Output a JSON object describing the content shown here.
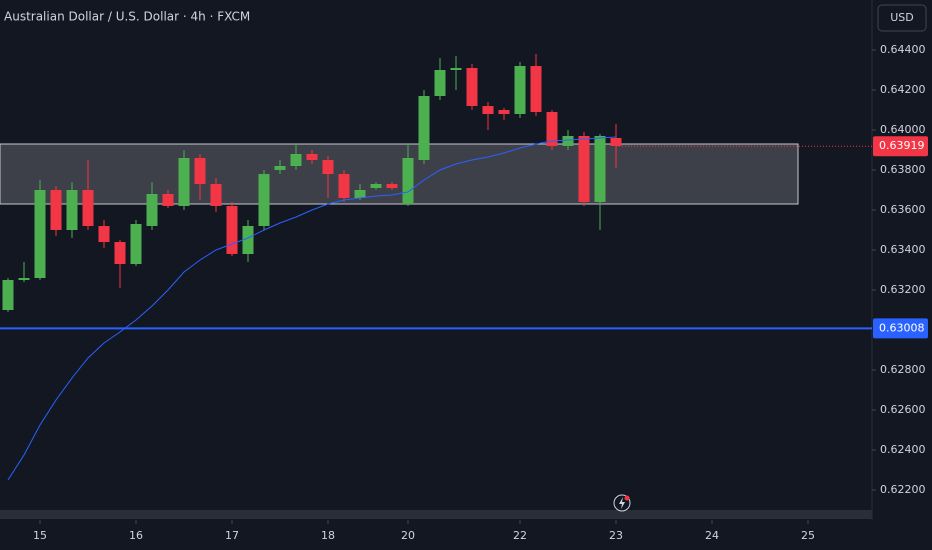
{
  "chart_data": {
    "type": "candlestick",
    "title": "Australian Dollar / U.S. Dollar · 4h · FXCM",
    "currency": "USD",
    "up_color": "#4caf50",
    "down_color": "#f23645",
    "candles": {
      "open": [
        0.631,
        0.6325,
        0.6326,
        0.637,
        0.635,
        0.637,
        0.6352,
        0.6344,
        0.6333,
        0.6352,
        0.6368,
        0.6362,
        0.6386,
        0.6373,
        0.6362,
        0.6338,
        0.6352,
        0.638,
        0.6382,
        0.6388,
        0.6385,
        0.6378,
        0.6366,
        0.6371,
        0.6373,
        0.6363,
        0.6385,
        0.6417,
        0.643,
        0.6431,
        0.6412,
        0.641,
        0.6408,
        0.6432,
        0.6409,
        0.6392,
        0.6397,
        0.6364,
        0.6396
      ],
      "high": [
        0.6326,
        0.6334,
        0.6375,
        0.6372,
        0.6374,
        0.6385,
        0.6355,
        0.6345,
        0.6355,
        0.6374,
        0.637,
        0.639,
        0.6388,
        0.6376,
        0.6364,
        0.6355,
        0.638,
        0.6385,
        0.6393,
        0.639,
        0.6387,
        0.638,
        0.6373,
        0.6374,
        0.6374,
        0.6393,
        0.642,
        0.6436,
        0.6437,
        0.6433,
        0.6414,
        0.6411,
        0.6434,
        0.6438,
        0.641,
        0.64,
        0.6399,
        0.6398,
        0.6403
      ],
      "low": [
        0.6309,
        0.6324,
        0.6325,
        0.6347,
        0.6346,
        0.635,
        0.6341,
        0.6321,
        0.6332,
        0.635,
        0.6361,
        0.636,
        0.6365,
        0.6359,
        0.6337,
        0.6334,
        0.635,
        0.6378,
        0.638,
        0.6383,
        0.6366,
        0.6364,
        0.6365,
        0.637,
        0.637,
        0.6362,
        0.6383,
        0.6415,
        0.642,
        0.641,
        0.64,
        0.6405,
        0.6406,
        0.6407,
        0.639,
        0.639,
        0.6362,
        0.635,
        0.6381
      ],
      "close": [
        0.6325,
        0.6326,
        0.637,
        0.635,
        0.637,
        0.6352,
        0.6344,
        0.6333,
        0.6353,
        0.6368,
        0.6362,
        0.6386,
        0.6373,
        0.6362,
        0.6338,
        0.6352,
        0.6378,
        0.6382,
        0.6388,
        0.6385,
        0.6378,
        0.6366,
        0.637,
        0.6373,
        0.6371,
        0.6386,
        0.6417,
        0.643,
        0.6431,
        0.6412,
        0.6408,
        0.6408,
        0.6432,
        0.6409,
        0.6392,
        0.6397,
        0.6364,
        0.6397,
        0.6392
      ]
    },
    "moving_average": {
      "color": "#2962ff",
      "values": [
        0.6225,
        0.62375,
        0.62525,
        0.6265,
        0.6276,
        0.6286,
        0.62935,
        0.6299,
        0.6305,
        0.6312,
        0.632,
        0.6329,
        0.6335,
        0.634,
        0.6343,
        0.6346,
        0.635,
        0.63535,
        0.63565,
        0.636,
        0.6363,
        0.6365,
        0.6366,
        0.6367,
        0.63675,
        0.6369,
        0.6375,
        0.638,
        0.6383,
        0.6385,
        0.63865,
        0.63885,
        0.6391,
        0.6393,
        0.63945,
        0.6395,
        0.63955,
        0.6396,
        0.63965
      ]
    },
    "zone": {
      "top": 0.6393,
      "bottom": 0.6363
    },
    "horizontal_line": {
      "value": 0.63008,
      "color": "#2962ff"
    },
    "last_price": 0.63919,
    "xlim": [
      -0.5,
      54
    ],
    "xticks": [
      {
        "value": 2,
        "label": "15"
      },
      {
        "value": 8,
        "label": "16"
      },
      {
        "value": 14,
        "label": "17"
      },
      {
        "value": 20,
        "label": "18"
      },
      {
        "value": 25,
        "label": "20"
      },
      {
        "value": 32,
        "label": "22"
      },
      {
        "value": 38,
        "label": "23"
      },
      {
        "value": 44,
        "label": "24"
      },
      {
        "value": 50,
        "label": "25"
      }
    ],
    "ylim": [
      0.621,
      0.6465
    ],
    "yticks": [
      {
        "value": 0.622,
        "label": "0.62200"
      },
      {
        "value": 0.624,
        "label": "0.62400"
      },
      {
        "value": 0.626,
        "label": "0.62600"
      },
      {
        "value": 0.628,
        "label": "0.62800"
      },
      {
        "value": 0.632,
        "label": "0.63200"
      },
      {
        "value": 0.634,
        "label": "0.63400"
      },
      {
        "value": 0.636,
        "label": "0.63600"
      },
      {
        "value": 0.638,
        "label": "0.63800"
      },
      {
        "value": 0.64,
        "label": "0.64000"
      },
      {
        "value": 0.642,
        "label": "0.64200"
      },
      {
        "value": 0.644,
        "label": "0.64400"
      }
    ]
  }
}
